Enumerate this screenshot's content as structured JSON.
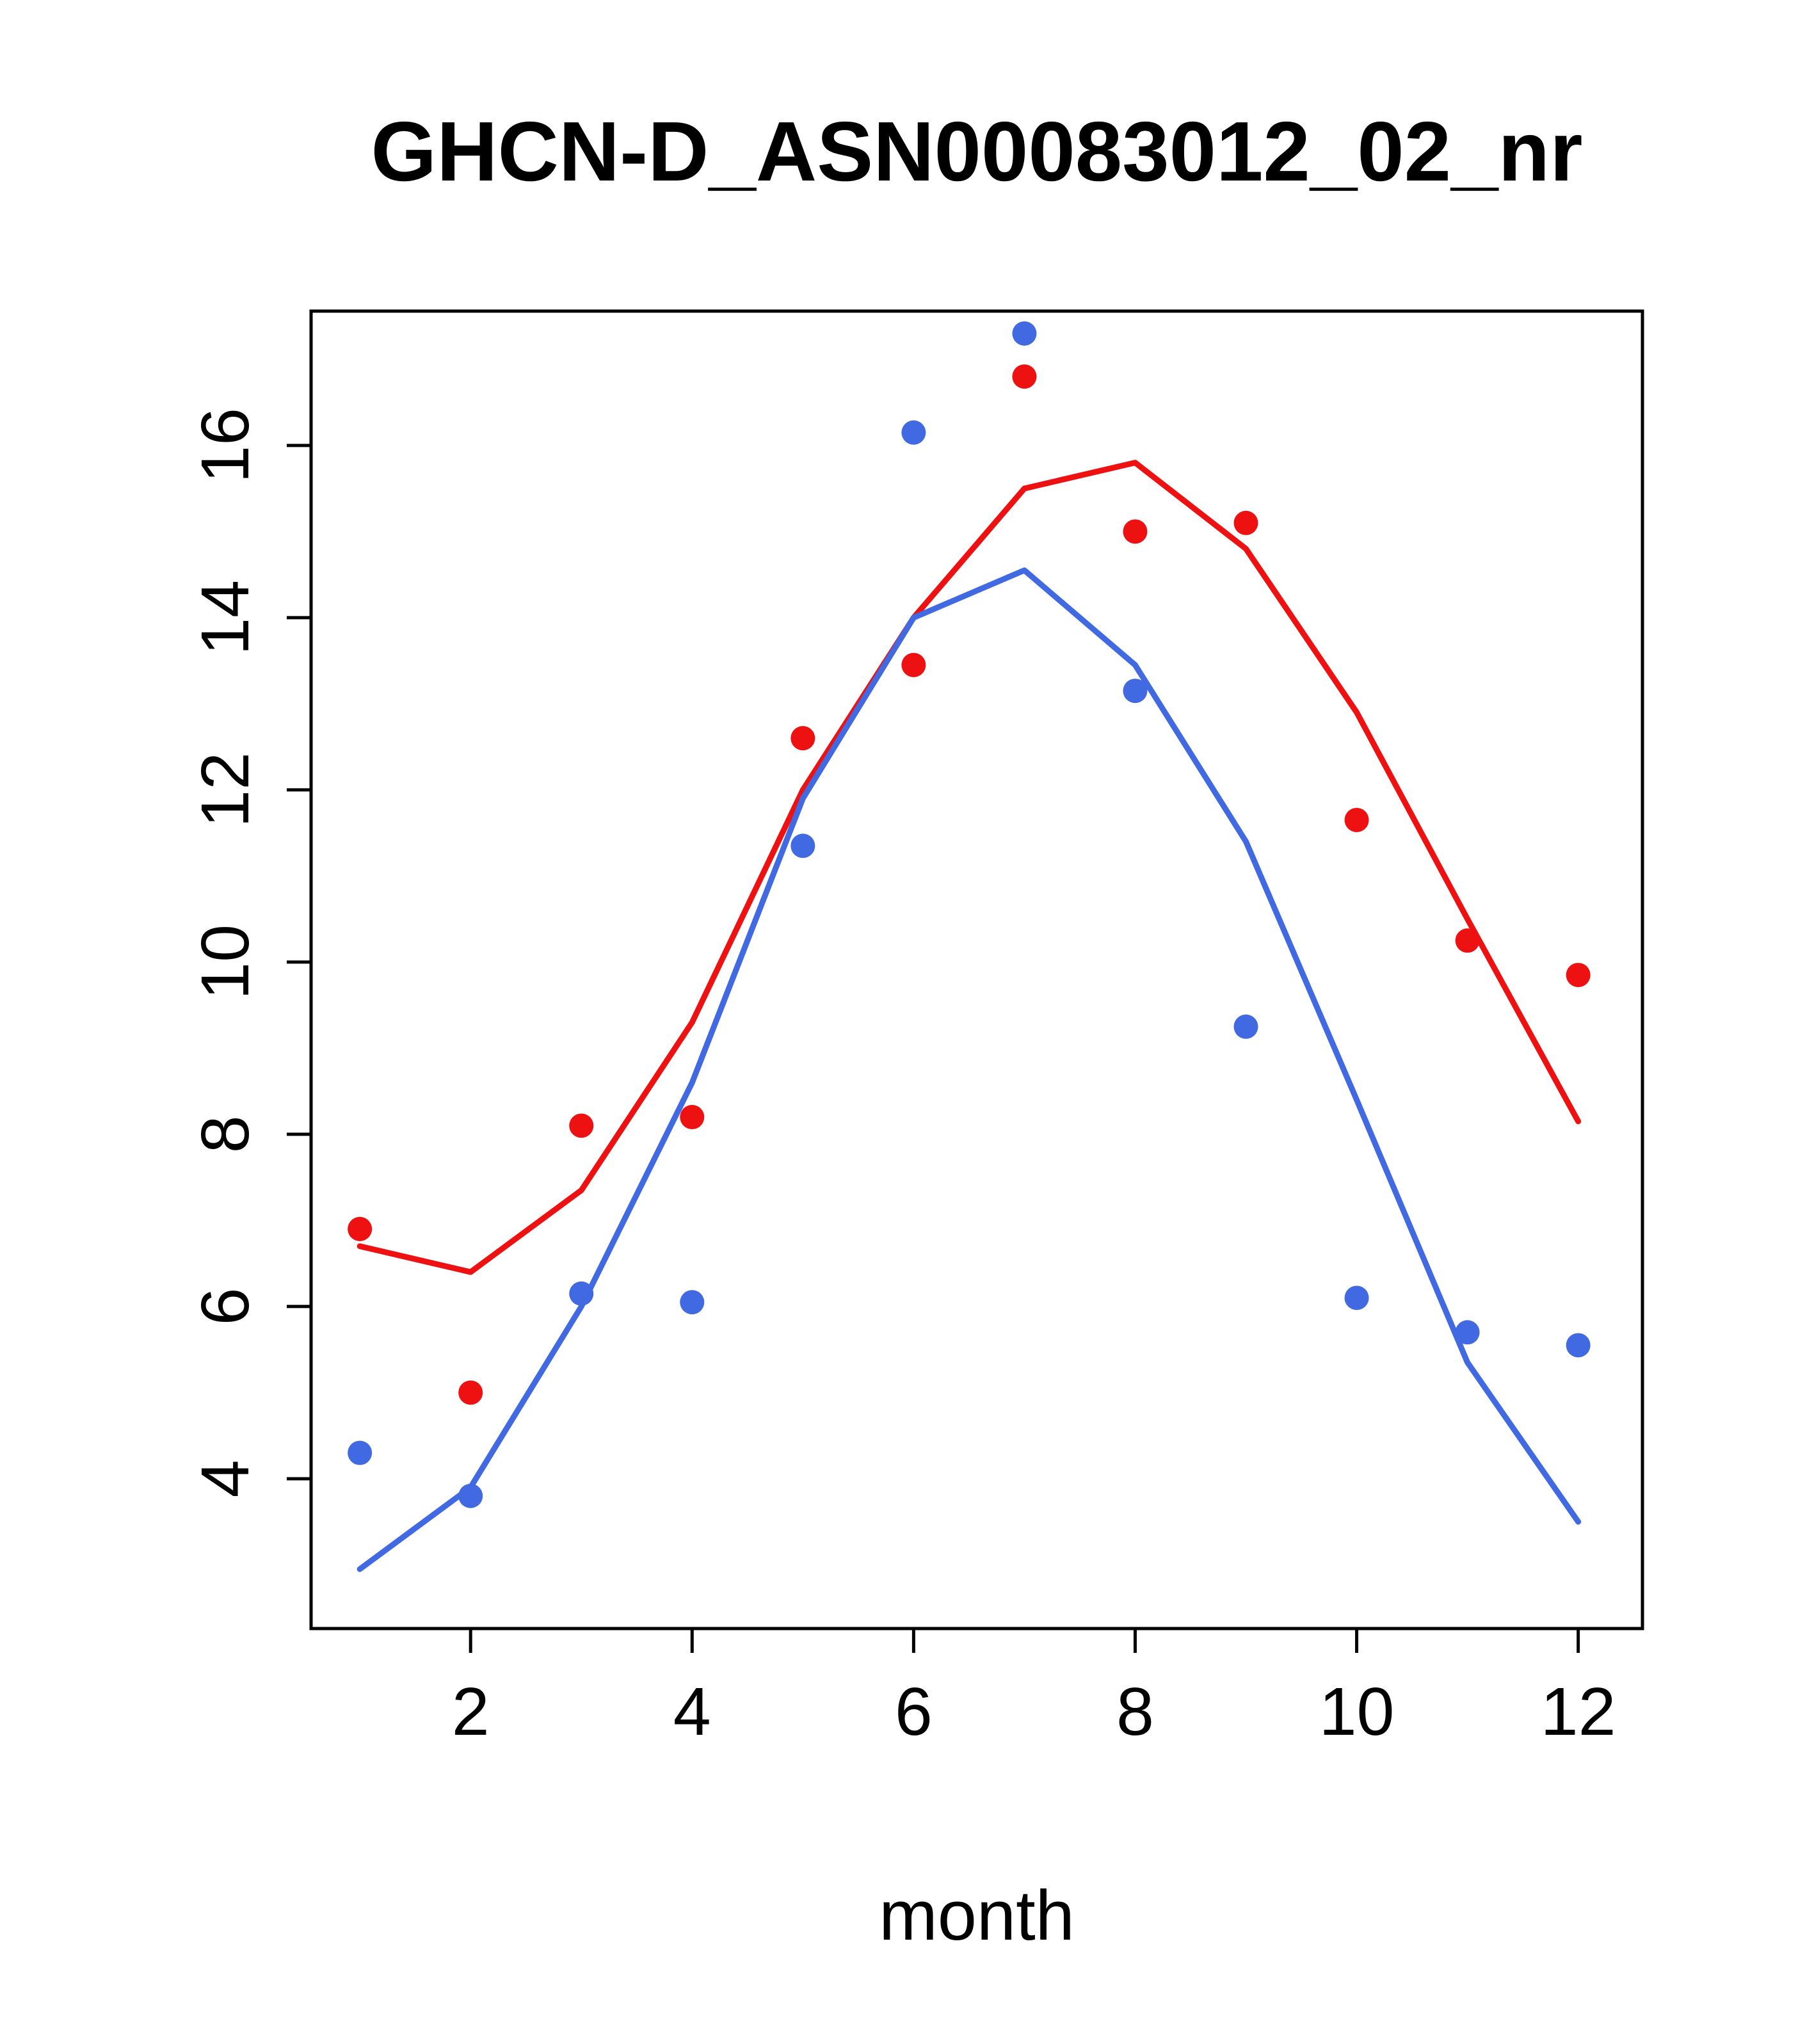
{
  "chart_data": {
    "type": "line-scatter",
    "title": "GHCN-D_ASN00083012_02_nr",
    "xlabel": "month",
    "ylabel": "",
    "x": [
      1,
      2,
      3,
      4,
      5,
      6,
      7,
      8,
      9,
      10,
      11,
      12
    ],
    "x_ticks": [
      2,
      4,
      6,
      8,
      10,
      12
    ],
    "y_ticks": [
      4,
      6,
      8,
      10,
      12,
      14,
      16
    ],
    "xlim": [
      0.56,
      12.58
    ],
    "ylim": [
      2.26,
      17.56
    ],
    "grid": false,
    "legend": "none",
    "colors": {
      "red": "#ee1111",
      "blue": "#4169e1",
      "frame": "#000000"
    },
    "series": [
      {
        "name": "red-points",
        "kind": "points",
        "color_key": "red",
        "values": [
          6.9,
          5.0,
          8.1,
          8.2,
          12.6,
          13.45,
          16.8,
          15.0,
          15.1,
          11.65,
          10.25,
          9.85
        ]
      },
      {
        "name": "blue-points",
        "kind": "points",
        "color_key": "blue",
        "values": [
          4.3,
          3.8,
          6.15,
          6.05,
          11.35,
          16.15,
          17.3,
          13.15,
          9.25,
          6.1,
          5.7,
          5.55
        ]
      },
      {
        "name": "red-line",
        "kind": "line",
        "color_key": "red",
        "values": [
          6.7,
          6.4,
          7.35,
          9.3,
          12.0,
          14.0,
          15.5,
          15.8,
          14.8,
          12.9,
          10.5,
          8.15
        ]
      },
      {
        "name": "blue-line",
        "kind": "line",
        "color_key": "blue",
        "values": [
          2.95,
          3.9,
          6.0,
          8.6,
          11.9,
          14.0,
          14.55,
          13.45,
          11.4,
          8.4,
          5.35,
          3.5
        ]
      }
    ]
  }
}
